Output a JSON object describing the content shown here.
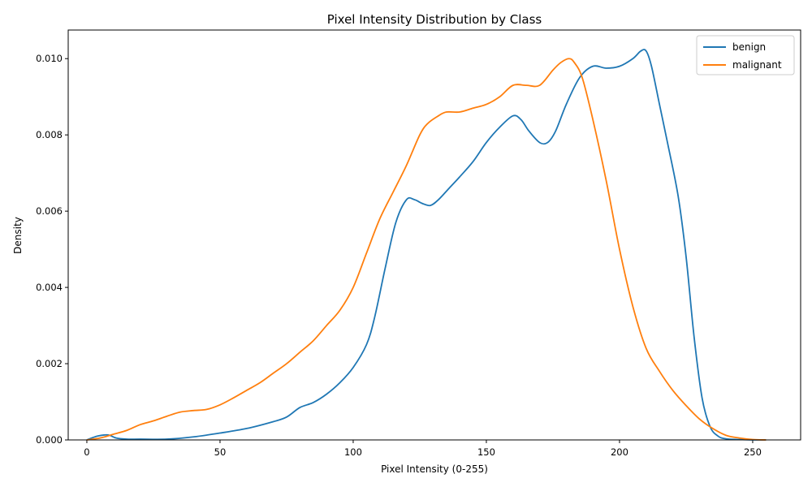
{
  "chart_data": {
    "type": "line",
    "title": "Pixel Intensity Distribution by Class",
    "xlabel": "Pixel Intensity (0-255)",
    "ylabel": "Density",
    "xlim": [
      -7,
      268
    ],
    "ylim": [
      0,
      0.01075
    ],
    "xticks": [
      0,
      50,
      100,
      150,
      200,
      250
    ],
    "xtick_labels": [
      "0",
      "50",
      "100",
      "150",
      "200",
      "250"
    ],
    "yticks": [
      0,
      0.002,
      0.004,
      0.006,
      0.008,
      0.01
    ],
    "ytick_labels": [
      "0.000",
      "0.002",
      "0.004",
      "0.006",
      "0.008",
      "0.010"
    ],
    "grid": false,
    "legend_position": "top-right",
    "series": [
      {
        "name": "benign",
        "color": "#1f77b4",
        "x": [
          0,
          4,
          8,
          11,
          15,
          20,
          30,
          40,
          50,
          60,
          70,
          75,
          80,
          85,
          90,
          95,
          100,
          105,
          108,
          112,
          116,
          120,
          123,
          126,
          129,
          132,
          136,
          140,
          145,
          150,
          155,
          160,
          163,
          166,
          170,
          173,
          176,
          180,
          185,
          190,
          195,
          200,
          205,
          208,
          210,
          212,
          215,
          218,
          222,
          225,
          228,
          231,
          234,
          237,
          240,
          245,
          250,
          255
        ],
        "y": [
          0.0,
          0.0001,
          0.00013,
          5e-05,
          2e-05,
          2e-05,
          2e-05,
          8e-05,
          0.00018,
          0.0003,
          0.00048,
          0.0006,
          0.00085,
          0.00098,
          0.0012,
          0.0015,
          0.0019,
          0.0025,
          0.0032,
          0.0045,
          0.0057,
          0.0063,
          0.0063,
          0.0062,
          0.00615,
          0.0063,
          0.0066,
          0.0069,
          0.0073,
          0.0078,
          0.0082,
          0.0085,
          0.0084,
          0.0081,
          0.0078,
          0.0078,
          0.0081,
          0.0088,
          0.0095,
          0.0098,
          0.00975,
          0.0098,
          0.01,
          0.0102,
          0.0102,
          0.0098,
          0.0088,
          0.0078,
          0.0064,
          0.0048,
          0.0027,
          0.0011,
          0.00035,
          0.0001,
          3e-05,
          1e-05,
          0.0,
          0.0
        ]
      },
      {
        "name": "malignant",
        "color": "#ff7f0e",
        "x": [
          0,
          5,
          10,
          15,
          20,
          25,
          30,
          35,
          40,
          45,
          50,
          55,
          60,
          65,
          70,
          75,
          80,
          85,
          90,
          95,
          100,
          105,
          110,
          115,
          120,
          125,
          128,
          132,
          135,
          140,
          145,
          150,
          155,
          160,
          165,
          170,
          175,
          178,
          181,
          183,
          186,
          190,
          195,
          200,
          205,
          210,
          215,
          220,
          225,
          230,
          235,
          240,
          245,
          250,
          255
        ],
        "y": [
          0.0,
          5e-05,
          0.00015,
          0.00025,
          0.0004,
          0.0005,
          0.00062,
          0.00073,
          0.00077,
          0.0008,
          0.00092,
          0.0011,
          0.0013,
          0.0015,
          0.00175,
          0.002,
          0.0023,
          0.0026,
          0.003,
          0.0034,
          0.004,
          0.0049,
          0.0058,
          0.0065,
          0.0072,
          0.008,
          0.0083,
          0.0085,
          0.0086,
          0.0086,
          0.0087,
          0.0088,
          0.009,
          0.0093,
          0.0093,
          0.0093,
          0.0097,
          0.0099,
          0.01,
          0.0099,
          0.0095,
          0.0084,
          0.0068,
          0.005,
          0.0035,
          0.0024,
          0.0018,
          0.0013,
          0.0009,
          0.00055,
          0.0003,
          0.00012,
          5e-05,
          1e-05,
          0.0
        ]
      }
    ]
  }
}
